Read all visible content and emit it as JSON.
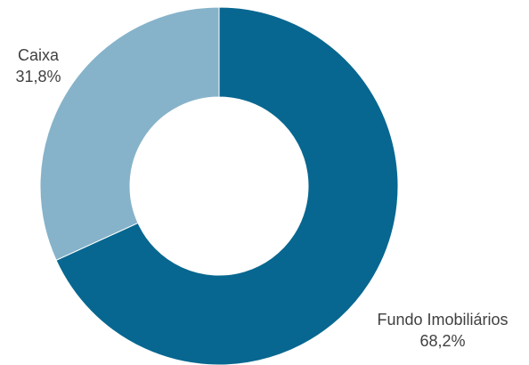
{
  "chart_data": {
    "type": "pie",
    "subtype": "donut",
    "title": "",
    "legend": "none",
    "slices": [
      {
        "label": "Fundo Imobiliários",
        "value": 68.2,
        "value_label": "68,2%",
        "color": "#076790"
      },
      {
        "label": "Caixa",
        "value": 31.8,
        "value_label": "31,8%",
        "color": "#86B3CA"
      }
    ]
  }
}
